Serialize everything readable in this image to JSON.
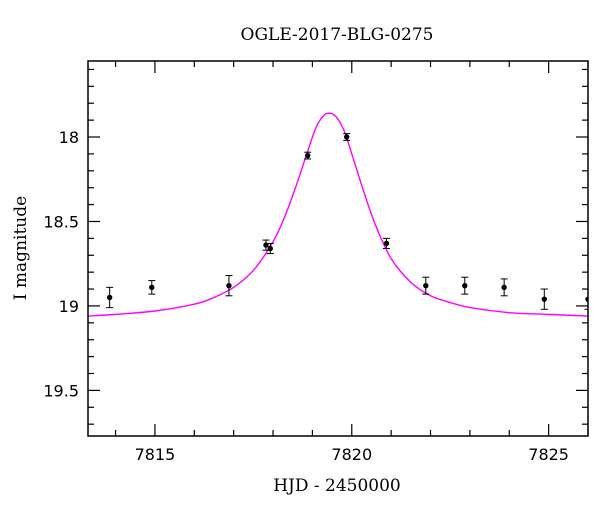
{
  "chart_data": {
    "type": "scatter",
    "title": "OGLE-2017-BLG-0275",
    "xlabel": "HJD - 2450000",
    "ylabel": "I magnitude",
    "xlim": [
      7813.3,
      7826.0
    ],
    "ylim": [
      19.77,
      17.55
    ],
    "y_inverted": true,
    "x_ticks": [
      7815,
      7820,
      7825
    ],
    "x_tick_labels": [
      "7815",
      "7820",
      "7825"
    ],
    "y_ticks": [
      18,
      18.5,
      19,
      19.5
    ],
    "y_tick_labels": [
      "18",
      "18.5",
      "19",
      "19.5"
    ],
    "colors": {
      "model": "#ff00ff",
      "points": "#000000",
      "axes": "#000000"
    },
    "grid": false,
    "series": [
      {
        "type": "scatter_errorbar",
        "x": [
          7813.85,
          7814.92,
          7816.88,
          7817.82,
          7817.93,
          7818.88,
          7819.87,
          7820.88,
          7821.88,
          7822.87,
          7823.87,
          7824.89,
          7826.0
        ],
        "y": [
          18.95,
          18.89,
          18.88,
          18.64,
          18.66,
          18.11,
          18.0,
          18.63,
          18.88,
          18.88,
          18.89,
          18.96,
          18.96
        ],
        "err": [
          0.06,
          0.04,
          0.06,
          0.03,
          0.03,
          0.02,
          0.02,
          0.03,
          0.05,
          0.05,
          0.05,
          0.06,
          0.06
        ]
      },
      {
        "type": "model_line",
        "x": [
          7813.3,
          7814.0,
          7815.0,
          7816.0,
          7816.5,
          7817.0,
          7817.5,
          7818.0,
          7818.3,
          7818.6,
          7818.9,
          7819.1,
          7819.3,
          7819.45,
          7819.6,
          7819.8,
          7820.0,
          7820.3,
          7820.6,
          7821.0,
          7821.5,
          7822.0,
          7822.5,
          7823.0,
          7824.0,
          7825.0,
          7826.0
        ],
        "y": [
          19.06,
          19.05,
          19.03,
          18.99,
          18.95,
          18.89,
          18.79,
          18.62,
          18.47,
          18.28,
          18.07,
          17.94,
          17.87,
          17.86,
          17.88,
          17.96,
          18.1,
          18.32,
          18.52,
          18.72,
          18.86,
          18.94,
          18.98,
          19.01,
          19.04,
          19.05,
          19.06
        ]
      }
    ]
  }
}
